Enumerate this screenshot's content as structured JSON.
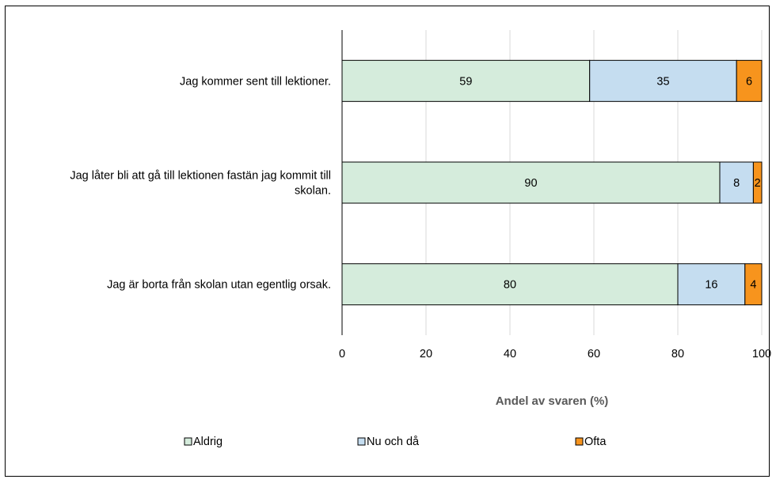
{
  "chart_data": {
    "type": "bar",
    "orientation": "horizontal",
    "stacked": true,
    "categories": [
      [
        "Jag kommer sent till lektioner."
      ],
      [
        "Jag låter bli att gå till lektionen fastän jag kommit till",
        "skolan."
      ],
      [
        "Jag är borta från skolan utan egentlig orsak."
      ]
    ],
    "series": [
      {
        "name": "Aldrig",
        "values": [
          59,
          90,
          80
        ],
        "color": "#d5ecdc"
      },
      {
        "name": "Nu och då",
        "values": [
          35,
          8,
          16
        ],
        "color": "#c5ddf0"
      },
      {
        "name": "Ofta",
        "values": [
          6,
          2,
          4
        ],
        "color": "#f7941d"
      }
    ],
    "xlabel": "Andel av svaren (%)",
    "xlim": [
      0,
      100
    ],
    "xticks": [
      "0",
      "20",
      "40",
      "60",
      "80",
      "100"
    ],
    "grid": true,
    "legend": "bottom"
  }
}
